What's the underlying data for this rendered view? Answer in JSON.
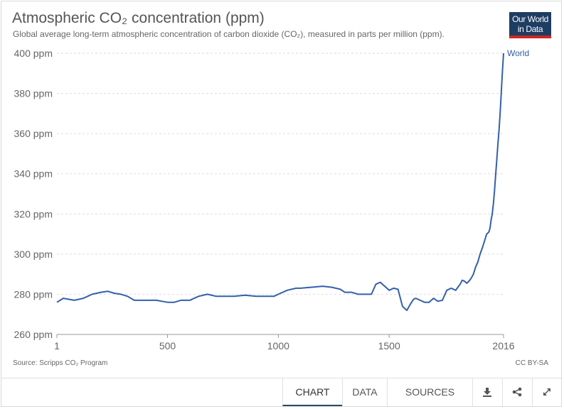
{
  "header": {
    "title": "Atmospheric CO₂ concentration (ppm)",
    "subtitle": "Global average long-term atmospheric concentration of carbon dioxide (CO₂), measured in parts per million (ppm).",
    "logo_line1": "Our World",
    "logo_line2": "in Data"
  },
  "footer": {
    "source": "Source: Scripps CO₂ Program",
    "license": "CC BY-SA",
    "tabs": [
      {
        "label": "CHART",
        "active": true
      },
      {
        "label": "DATA",
        "active": false
      },
      {
        "label": "SOURCES",
        "active": false
      }
    ],
    "tools": [
      "download-icon",
      "share-icon",
      "expand-icon"
    ]
  },
  "colors": {
    "series": "#3360a9",
    "logo_bg": "#1d3d63",
    "logo_accent": "#ce261e",
    "grid": "#dddddd"
  },
  "chart_data": {
    "type": "line",
    "title": "Atmospheric CO₂ concentration (ppm)",
    "xlabel": "",
    "ylabel": "",
    "xlim": [
      1,
      2016
    ],
    "ylim": [
      260,
      400
    ],
    "x_ticks": [
      {
        "value": 1,
        "label": "1"
      },
      {
        "value": 500,
        "label": "500"
      },
      {
        "value": 1000,
        "label": "1000"
      },
      {
        "value": 1500,
        "label": "1500"
      },
      {
        "value": 2016,
        "label": "2016"
      }
    ],
    "y_ticks": [
      {
        "value": 260,
        "label": "260 ppm"
      },
      {
        "value": 280,
        "label": "280 ppm"
      },
      {
        "value": 300,
        "label": "300 ppm"
      },
      {
        "value": 320,
        "label": "320 ppm"
      },
      {
        "value": 340,
        "label": "340 ppm"
      },
      {
        "value": 360,
        "label": "360 ppm"
      },
      {
        "value": 380,
        "label": "380 ppm"
      },
      {
        "value": 400,
        "label": "400 ppm"
      }
    ],
    "grid": "horizontal dashed",
    "series": [
      {
        "name": "World",
        "color": "#3360a9",
        "x": [
          1,
          30,
          80,
          120,
          160,
          200,
          230,
          260,
          290,
          320,
          350,
          380,
          400,
          450,
          500,
          530,
          560,
          600,
          640,
          680,
          720,
          750,
          800,
          850,
          900,
          950,
          980,
          1000,
          1040,
          1080,
          1100,
          1150,
          1200,
          1240,
          1280,
          1300,
          1330,
          1360,
          1400,
          1420,
          1440,
          1460,
          1480,
          1500,
          1520,
          1540,
          1560,
          1580,
          1595,
          1610,
          1620,
          1640,
          1660,
          1680,
          1700,
          1720,
          1740,
          1760,
          1780,
          1800,
          1810,
          1820,
          1830,
          1840,
          1850,
          1860,
          1870,
          1880,
          1890,
          1900,
          1910,
          1920,
          1930,
          1940,
          1950,
          1955,
          1960,
          1965,
          1970,
          1975,
          1980,
          1985,
          1990,
          1995,
          2000,
          2005,
          2010,
          2016
        ],
        "y": [
          276,
          278,
          277,
          278,
          280,
          281,
          281.5,
          280.5,
          280,
          279,
          277,
          277,
          277,
          277,
          276,
          276,
          277,
          277,
          279,
          280,
          279,
          279,
          279,
          279.5,
          279,
          279,
          279,
          280,
          282,
          283,
          283,
          283.5,
          284,
          283.5,
          282.5,
          281,
          281,
          280,
          280,
          280,
          285,
          286,
          284,
          282,
          283,
          282.5,
          274,
          272,
          275,
          277.5,
          278,
          277,
          276,
          276,
          278,
          276.5,
          277,
          282,
          283,
          282,
          283.5,
          285,
          287,
          286.5,
          285.5,
          286.5,
          288,
          290,
          293.5,
          296,
          300,
          303,
          306.5,
          310,
          311,
          313,
          317,
          320,
          325,
          331,
          339,
          346,
          354,
          361,
          369,
          379,
          389,
          400
        ]
      }
    ]
  }
}
